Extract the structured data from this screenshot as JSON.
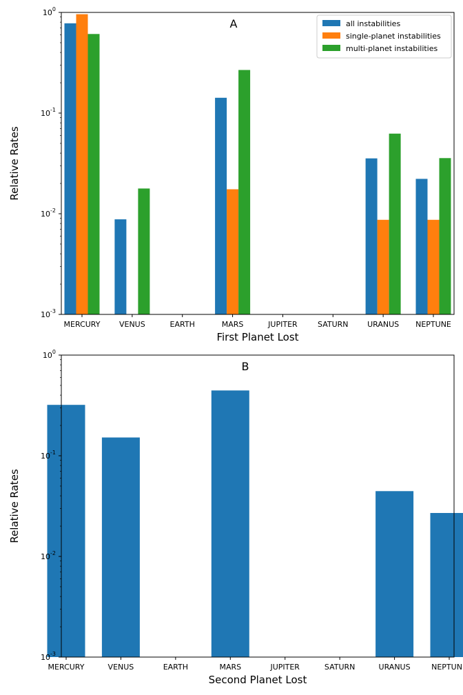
{
  "chart_data": [
    {
      "type": "bar",
      "title": "A",
      "xlabel": "First Planet Lost",
      "ylabel": "Relative Rates",
      "yscale": "log",
      "ylim": [
        0.001,
        1
      ],
      "ytick_labels": [
        "10",
        "10",
        "10",
        "10"
      ],
      "ytick_exponents": [
        "-3",
        "-2",
        "-1",
        "0"
      ],
      "categories": [
        "MERCURY",
        "VENUS",
        "EARTH",
        "MARS",
        "JUPITER",
        "SATURN",
        "URANUS",
        "NEPTUNE"
      ],
      "series": [
        {
          "name": "all instabilities",
          "color": "#1f77b4",
          "values": [
            0.78,
            0.0088,
            null,
            0.142,
            null,
            null,
            0.0355,
            0.0222
          ]
        },
        {
          "name": "single-planet instabilities",
          "color": "#ff7f0e",
          "values": [
            0.96,
            null,
            null,
            0.0175,
            null,
            null,
            0.0087,
            0.0087
          ]
        },
        {
          "name": "multi-planet instabilities",
          "color": "#2ca02c",
          "values": [
            0.61,
            0.0178,
            null,
            0.268,
            null,
            null,
            0.0625,
            0.0357
          ]
        }
      ],
      "grid": false,
      "legend_position": "top-right"
    },
    {
      "type": "bar",
      "title": "B",
      "xlabel": "Second Planet Lost",
      "ylabel": "Relative Rates",
      "yscale": "log",
      "ylim": [
        0.001,
        1
      ],
      "ytick_labels": [
        "10",
        "10",
        "10",
        "10"
      ],
      "ytick_exponents": [
        "-3",
        "-2",
        "-1",
        "0"
      ],
      "categories": [
        "MERCURY",
        "VENUS",
        "EARTH",
        "MARS",
        "JUPITER",
        "SATURN",
        "URANUS",
        "NEPTUNE"
      ],
      "series": [
        {
          "color": "#1f77b4",
          "values": [
            0.32,
            0.152,
            null,
            0.445,
            null,
            null,
            0.0445,
            0.027
          ]
        }
      ],
      "grid": false
    }
  ]
}
